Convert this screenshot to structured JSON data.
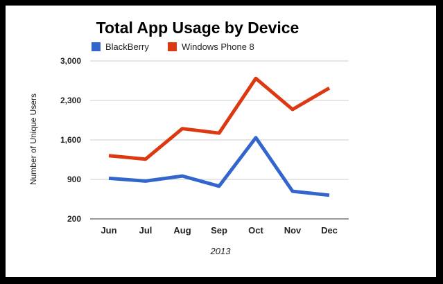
{
  "chart_data": {
    "type": "line",
    "title": "Total App Usage by Device",
    "xlabel": "2013",
    "ylabel": "Number of Unique Users",
    "categories": [
      "Jun",
      "Jul",
      "Aug",
      "Sep",
      "Oct",
      "Nov",
      "Dec"
    ],
    "ylim": [
      200,
      3000
    ],
    "yticks": [
      200,
      900,
      1600,
      2300,
      3000
    ],
    "ytick_labels": [
      "200",
      "900",
      "1,600",
      "2,300",
      "3,000"
    ],
    "legend_position": "top-left",
    "grid": true,
    "series": [
      {
        "name": "BlackBerry",
        "color": "#3366cc",
        "values": [
          920,
          870,
          960,
          780,
          1640,
          690,
          620
        ]
      },
      {
        "name": "Windows Phone 8",
        "color": "#dc3912",
        "values": [
          1320,
          1260,
          1800,
          1720,
          2690,
          2140,
          2520
        ]
      }
    ]
  }
}
